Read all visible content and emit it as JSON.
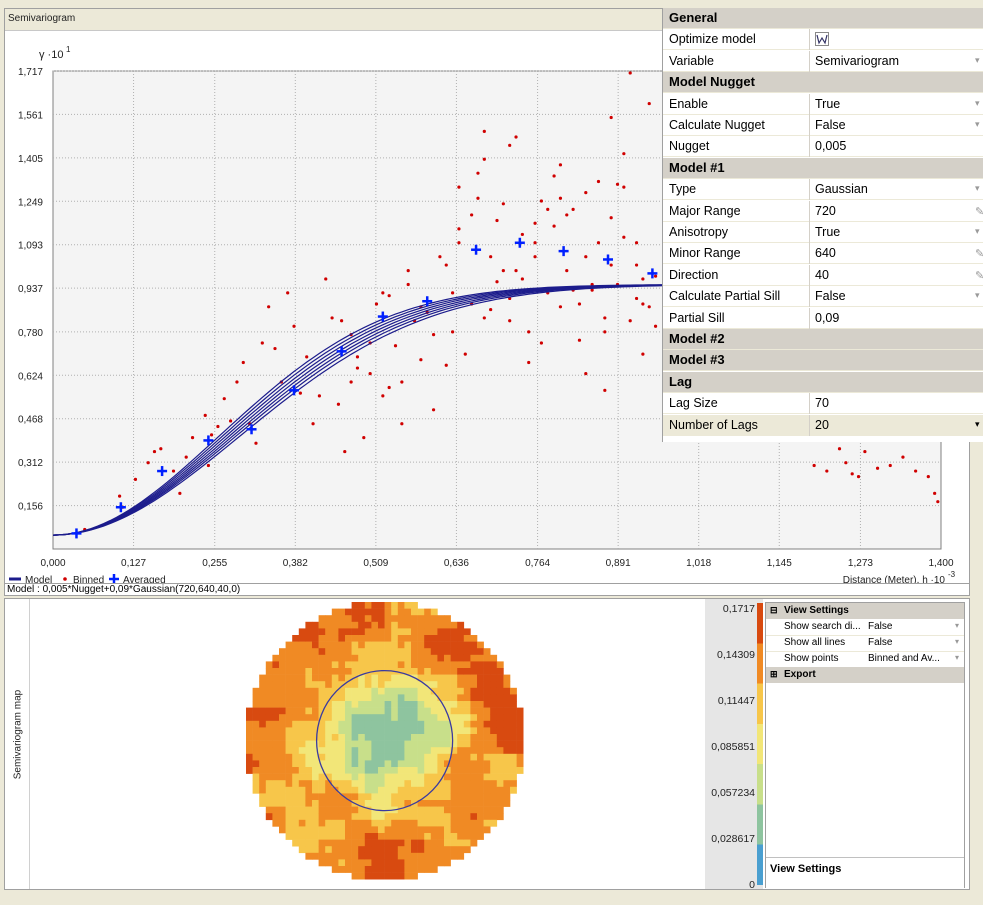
{
  "semivariogram": {
    "panel_title": "Semivariogram",
    "y_axis_label": "γ ·10",
    "y_axis_exp": "1",
    "x_axis_label": "Distance (Meter), h ·10",
    "x_axis_exp": "-3",
    "legend": {
      "model": "Model",
      "binned": "Binned",
      "averaged": "Averaged"
    },
    "formula": "Model : 0,005*Nugget+0,09*Gaussian(720,640,40,0)"
  },
  "chart_data": {
    "type": "scatter",
    "title": "",
    "xlabel": "Distance (Meter), h ·10-3",
    "ylabel": "γ ·10^1",
    "xlim": [
      0,
      1.4
    ],
    "ylim": [
      0,
      1.717
    ],
    "x_ticks": [
      "0,000",
      "0,127",
      "0,255",
      "0,382",
      "0,509",
      "0,636",
      "0,764",
      "0,891",
      "1,018",
      "1,145",
      "1,273",
      "1,400"
    ],
    "y_ticks": [
      "0,156",
      "0,312",
      "0,468",
      "0,624",
      "0,780",
      "0,937",
      "1,093",
      "1,249",
      "1,405",
      "1,561",
      "1,717"
    ],
    "grid": true,
    "legend_position": "bottom-left",
    "series": [
      {
        "name": "Model",
        "kind": "line",
        "color": "#1c1c8c",
        "nugget": 0.05,
        "sill_partial": 0.9,
        "ranges": [
          0.64,
          0.653,
          0.666,
          0.679,
          0.692,
          0.705,
          0.72
        ]
      },
      {
        "name": "Averaged",
        "kind": "marker-plus",
        "color": "#0020ff",
        "x": [
          0.037,
          0.107,
          0.172,
          0.245,
          0.313,
          0.38,
          0.455,
          0.52,
          0.59,
          0.667,
          0.736,
          0.805,
          0.875,
          0.945
        ],
        "y": [
          0.056,
          0.15,
          0.28,
          0.39,
          0.43,
          0.57,
          0.71,
          0.835,
          0.89,
          1.075,
          1.1,
          1.07,
          1.04,
          0.99
        ]
      },
      {
        "name": "Binned",
        "kind": "marker-dot",
        "color": "#d00000",
        "x": [
          0.05,
          0.105,
          0.11,
          0.13,
          0.15,
          0.16,
          0.17,
          0.19,
          0.2,
          0.21,
          0.22,
          0.24,
          0.245,
          0.25,
          0.26,
          0.27,
          0.28,
          0.29,
          0.3,
          0.31,
          0.32,
          0.33,
          0.34,
          0.35,
          0.36,
          0.37,
          0.38,
          0.39,
          0.4,
          0.41,
          0.42,
          0.43,
          0.44,
          0.45,
          0.46,
          0.47,
          0.48,
          0.49,
          0.5,
          0.51,
          0.52,
          0.53,
          0.54,
          0.55,
          0.56,
          0.57,
          0.58,
          0.59,
          0.6,
          0.61,
          0.62,
          0.63,
          0.64,
          0.65,
          0.66,
          0.67,
          0.68,
          0.69,
          0.7,
          0.71,
          0.72,
          0.73,
          0.74,
          0.75,
          0.76,
          0.77,
          0.78,
          0.79,
          0.8,
          0.81,
          0.82,
          0.83,
          0.84,
          0.85,
          0.86,
          0.87,
          0.88,
          0.89,
          0.9,
          0.91,
          0.92,
          0.93,
          0.94,
          0.95,
          1.2,
          1.22,
          1.24,
          1.25,
          1.26,
          1.27,
          1.28,
          1.3,
          1.32,
          1.34,
          1.36,
          1.38,
          1.39,
          1.395,
          0.455,
          0.47,
          0.5,
          0.53,
          0.56,
          0.6,
          0.62,
          0.64,
          0.66,
          0.68,
          0.7,
          0.72,
          0.74,
          0.76,
          0.78,
          0.8,
          0.82,
          0.84,
          0.86,
          0.88,
          0.9,
          0.92,
          0.94,
          0.48,
          0.52,
          0.55,
          0.58,
          0.63,
          0.67,
          0.71,
          0.75,
          0.79,
          0.83,
          0.87,
          0.91,
          0.64,
          0.68,
          0.72,
          0.76,
          0.8,
          0.84,
          0.88,
          0.92,
          0.69,
          0.73,
          0.77,
          0.81,
          0.85,
          0.89,
          0.93,
          0.87,
          0.9,
          0.93,
          0.95
        ],
        "y": [
          0.07,
          0.19,
          0.15,
          0.25,
          0.31,
          0.35,
          0.36,
          0.28,
          0.2,
          0.33,
          0.4,
          0.48,
          0.3,
          0.41,
          0.44,
          0.54,
          0.46,
          0.6,
          0.67,
          0.45,
          0.38,
          0.74,
          0.87,
          0.72,
          0.6,
          0.92,
          0.8,
          0.56,
          0.69,
          0.45,
          0.55,
          0.97,
          0.83,
          0.52,
          0.35,
          0.77,
          0.65,
          0.4,
          0.63,
          0.88,
          0.55,
          0.91,
          0.73,
          0.6,
          1.0,
          0.82,
          0.68,
          0.85,
          0.77,
          1.05,
          0.66,
          0.92,
          1.15,
          0.7,
          1.2,
          1.35,
          0.83,
          1.05,
          0.96,
          1.24,
          0.9,
          1.0,
          1.13,
          0.78,
          1.05,
          1.25,
          0.92,
          1.16,
          0.87,
          1.0,
          1.22,
          0.75,
          1.28,
          0.93,
          1.1,
          0.83,
          1.02,
          0.95,
          1.3,
          0.82,
          1.1,
          0.7,
          0.87,
          0.98,
          0.3,
          0.28,
          0.36,
          0.31,
          0.27,
          0.26,
          0.35,
          0.29,
          0.3,
          0.33,
          0.28,
          0.26,
          0.2,
          0.17,
          0.82,
          0.6,
          0.74,
          0.58,
          0.95,
          0.5,
          1.02,
          1.3,
          0.88,
          1.5,
          1.18,
          1.45,
          0.97,
          1.1,
          1.22,
          1.38,
          0.93,
          1.05,
          1.32,
          1.19,
          1.42,
          0.9,
          1.6,
          0.69,
          0.92,
          0.45,
          0.87,
          0.78,
          1.26,
          1.0,
          0.67,
          1.34,
          0.88,
          0.57,
          1.71,
          1.1,
          1.4,
          0.82,
          1.17,
          1.26,
          0.63,
          1.55,
          1.02,
          0.86,
          1.48,
          0.74,
          1.2,
          0.95,
          1.31,
          0.88,
          0.78,
          1.12,
          0.97,
          0.8
        ]
      }
    ]
  },
  "properties": {
    "rows": [
      {
        "type": "cat",
        "label": "General"
      },
      {
        "type": "prop",
        "label": "Optimize model",
        "value": "",
        "icon": "optimize-icon"
      },
      {
        "type": "prop",
        "label": "Variable",
        "value": "Semivariogram",
        "dropdown": true
      },
      {
        "type": "cat",
        "label": "Model Nugget"
      },
      {
        "type": "prop",
        "label": "Enable",
        "value": "True",
        "dropdown": true
      },
      {
        "type": "prop",
        "label": "Calculate Nugget",
        "value": "False",
        "dropdown": true
      },
      {
        "type": "prop",
        "label": "Nugget",
        "value": "0,005"
      },
      {
        "type": "cat",
        "label": "Model #1"
      },
      {
        "type": "prop",
        "label": "Type",
        "value": "Gaussian",
        "dropdown": true
      },
      {
        "type": "prop",
        "label": "Major Range",
        "value": "720",
        "edit": true
      },
      {
        "type": "prop",
        "label": "Anisotropy",
        "value": "True",
        "dropdown": true
      },
      {
        "type": "prop",
        "label": "Minor Range",
        "value": "640",
        "edit": true
      },
      {
        "type": "prop",
        "label": "Direction",
        "value": "40",
        "edit": true
      },
      {
        "type": "prop",
        "label": "Calculate Partial Sill",
        "value": "False",
        "dropdown": true
      },
      {
        "type": "prop",
        "label": "Partial Sill",
        "value": "0,09"
      },
      {
        "type": "cat",
        "label": "Model #2"
      },
      {
        "type": "cat",
        "label": "Model #3"
      },
      {
        "type": "cat",
        "label": "Lag"
      },
      {
        "type": "prop",
        "label": "Lag Size",
        "value": "70"
      },
      {
        "type": "prop",
        "label": "Number of Lags",
        "value": "20",
        "dropdown": true,
        "selected": true
      }
    ]
  },
  "map": {
    "side_label": "Semivariogram map",
    "legend_values": [
      "0,1717",
      "0,14309",
      "0,11447",
      "0,085851",
      "0,057234",
      "0,028617",
      "0"
    ],
    "legend_colors": [
      "#d84a10",
      "#f08a24",
      "#f7c64a",
      "#f2e678",
      "#c8df8a",
      "#8ec49f",
      "#4a9fd0"
    ]
  },
  "view_settings": {
    "section_title": "View Settings",
    "rows": [
      {
        "label": "Show search di...",
        "value": "False"
      },
      {
        "label": "Show all lines",
        "value": "False"
      },
      {
        "label": "Show points",
        "value": "Binned and Av..."
      }
    ],
    "export_title": "Export",
    "footer_title": "View Settings"
  }
}
